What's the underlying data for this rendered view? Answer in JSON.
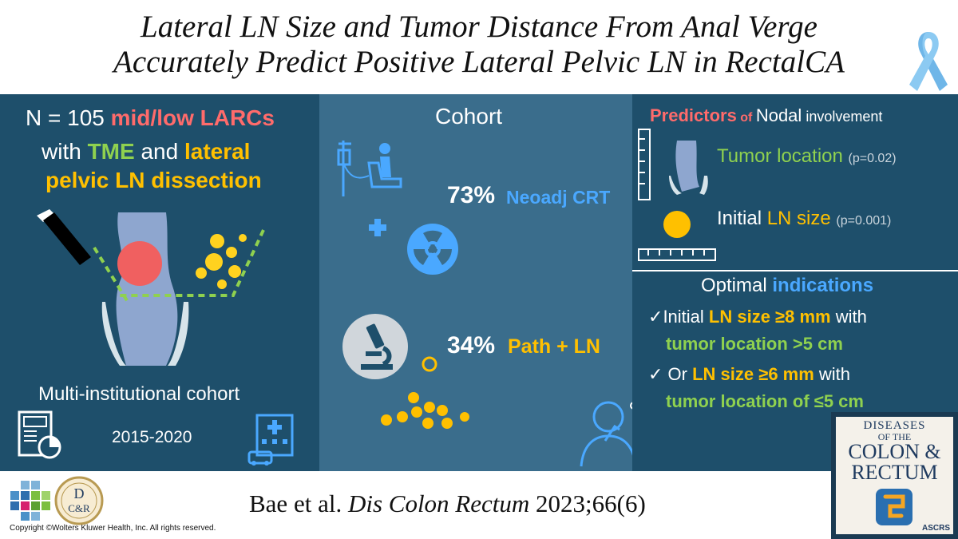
{
  "title": {
    "line1": "Lateral LN Size and Tumor Distance From Anal Verge",
    "line2": "Accurately Predict Positive Lateral Pelvic LN in RectalCA"
  },
  "left": {
    "n_prefix": "N = 105 ",
    "n_highlight": "mid/low LARCs",
    "with": "with ",
    "tme": "TME",
    "and": " and ",
    "lateral": "lateral",
    "dissection": "pelvic LN dissection",
    "cohort_type": "Multi-institutional cohort",
    "years": "2015-2020"
  },
  "middle": {
    "heading": "Cohort",
    "crt_pct": "73%",
    "crt_label": "Neoadj CRT",
    "path_pct": "34%",
    "path_label": "Path + LN"
  },
  "right": {
    "pred_word": "Predictors",
    "pred_of": " of ",
    "pred_nodal": "Nodal",
    "pred_inv": " involvement",
    "tumor_location": "Tumor location",
    "tumor_p": "(p=0.02)",
    "initial": "Initial ",
    "ln_size": "LN size",
    "ln_p": "(p=0.001)",
    "optimal": "Optimal ",
    "indications": "indications",
    "c1_check": "✓",
    "c1_a": "Initial ",
    "c1_b": "LN size ≥8 mm",
    "c1_c": " with",
    "c1_d": "tumor location >5 cm",
    "c2_check": "✓",
    "c2_a": " Or ",
    "c2_b": "LN size ≥6 mm",
    "c2_c": " with",
    "c2_d": "tumor location of ≤5 cm"
  },
  "footer": {
    "authors": "Bae et al. ",
    "journal": "Dis Colon Rectum",
    "ref": " 2023;66(6)",
    "copyright": "Copyright ©Wolters Kluwer Health, Inc. All rights reserved."
  },
  "journal_cover": {
    "line1": "DISEASES",
    "line2": "OF THE",
    "line3": "COLON &",
    "line4": "RECTUM",
    "org": "ASCRS"
  },
  "logo_dcr": {
    "letter_d": "D",
    "letters_cr": "C&R"
  },
  "colors": {
    "panel_dark": "#1e4f6b",
    "panel_mid": "#3a6d8c",
    "red": "#ff6b6b",
    "green": "#8fd14f",
    "yellow": "#ffc000",
    "blue": "#4aa8ff"
  }
}
